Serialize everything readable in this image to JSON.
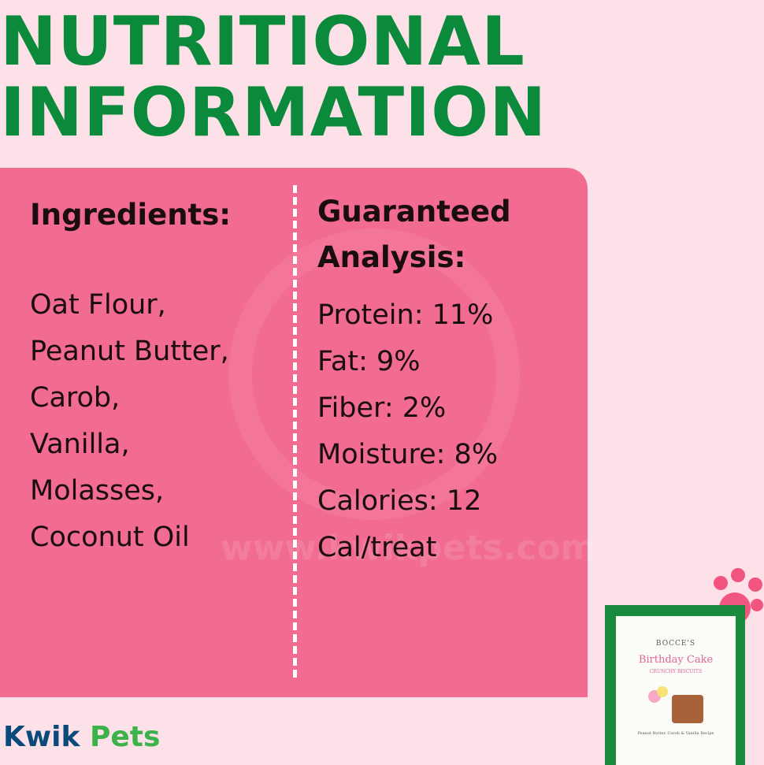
{
  "header": {
    "title_lines": [
      "NUTRITIONAL",
      "INFORMATION"
    ]
  },
  "ingredients": {
    "heading": "Ingredients:",
    "items": [
      "Oat Flour,",
      "Peanut Butter,",
      "Carob,",
      "Vanilla,",
      "Molasses,",
      "Coconut Oil"
    ]
  },
  "analysis": {
    "heading_lines": [
      "Guaranteed",
      "Analysis:"
    ],
    "items": [
      "Protein: 11%",
      "Fat: 9%",
      "Fiber: 2%",
      "Moisture: 8%",
      "Calories: 12",
      "Cal/treat"
    ]
  },
  "watermark": "www.kwikpets.com",
  "logo": {
    "first": "Kwik",
    "second": "Pets"
  },
  "package": {
    "brand": "BOCCE'S",
    "name": "Birthday Cake",
    "subtitle": "CRUNCHY BISCUITS",
    "recipe": "Peanut Butter, Carob & Vanilla Recipe"
  }
}
